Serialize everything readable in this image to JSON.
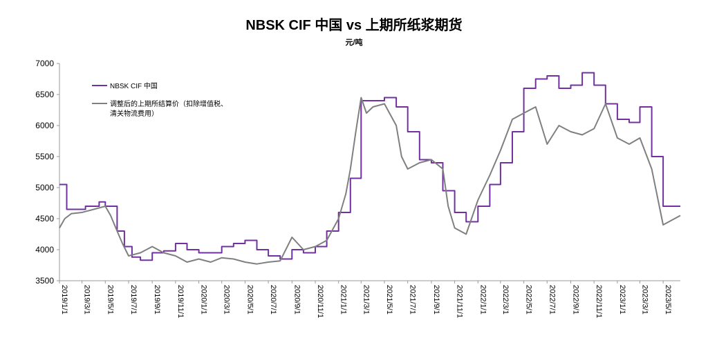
{
  "chart_data": {
    "type": "line",
    "title": "NBSK CIF 中国 vs 上期所纸浆期货",
    "unit": "元/吨",
    "xlabel": "",
    "ylabel": "",
    "ylim": [
      3500,
      7000
    ],
    "y_ticks": [
      3500,
      4000,
      4500,
      5000,
      5500,
      6000,
      6500,
      7000
    ],
    "x_range": [
      "2019-01-01",
      "2023-06-15"
    ],
    "x_tick_labels": [
      "2019/1/1",
      "2019/3/1",
      "2019/5/1",
      "2019/7/1",
      "2019/9/1",
      "2019/11/1",
      "2020/1/1",
      "2020/3/1",
      "2020/5/1",
      "2020/7/1",
      "2020/9/1",
      "2020/11/1",
      "2021/1/1",
      "2021/3/1",
      "2021/5/1",
      "2021/7/1",
      "2021/9/1",
      "2021/11/1",
      "2022/1/1",
      "2022/3/1",
      "2022/5/1",
      "2022/7/1",
      "2022/9/1",
      "2022/11/1",
      "2023/1/1",
      "2023/3/1",
      "2023/5/1"
    ],
    "grid": false,
    "legend_position": "top-left",
    "series": [
      {
        "name": "NBSK CIF 中国",
        "color": "#7030a0",
        "step": true,
        "points": [
          [
            "2019-01-01",
            5050
          ],
          [
            "2019-01-20",
            4650
          ],
          [
            "2019-03-10",
            4700
          ],
          [
            "2019-04-15",
            4770
          ],
          [
            "2019-05-01",
            4700
          ],
          [
            "2019-06-01",
            4300
          ],
          [
            "2019-06-20",
            4050
          ],
          [
            "2019-07-10",
            3880
          ],
          [
            "2019-08-01",
            3830
          ],
          [
            "2019-09-01",
            3950
          ],
          [
            "2019-10-01",
            3980
          ],
          [
            "2019-11-01",
            4100
          ],
          [
            "2019-12-01",
            4000
          ],
          [
            "2020-01-01",
            3950
          ],
          [
            "2020-02-01",
            3950
          ],
          [
            "2020-03-01",
            4050
          ],
          [
            "2020-04-01",
            4100
          ],
          [
            "2020-05-01",
            4150
          ],
          [
            "2020-06-01",
            4000
          ],
          [
            "2020-07-01",
            3900
          ],
          [
            "2020-08-01",
            3850
          ],
          [
            "2020-09-01",
            4000
          ],
          [
            "2020-10-01",
            3950
          ],
          [
            "2020-11-01",
            4050
          ],
          [
            "2020-12-01",
            4300
          ],
          [
            "2021-01-01",
            4600
          ],
          [
            "2021-02-01",
            5150
          ],
          [
            "2021-03-01",
            6400
          ],
          [
            "2021-05-01",
            6450
          ],
          [
            "2021-06-01",
            6300
          ],
          [
            "2021-07-01",
            5900
          ],
          [
            "2021-08-01",
            5450
          ],
          [
            "2021-09-01",
            5400
          ],
          [
            "2021-10-01",
            4950
          ],
          [
            "2021-11-01",
            4600
          ],
          [
            "2021-12-01",
            4450
          ],
          [
            "2022-01-01",
            4700
          ],
          [
            "2022-02-01",
            5050
          ],
          [
            "2022-03-01",
            5400
          ],
          [
            "2022-04-01",
            5900
          ],
          [
            "2022-05-01",
            6600
          ],
          [
            "2022-06-01",
            6750
          ],
          [
            "2022-07-01",
            6800
          ],
          [
            "2022-08-01",
            6600
          ],
          [
            "2022-09-01",
            6650
          ],
          [
            "2022-10-01",
            6850
          ],
          [
            "2022-11-01",
            6650
          ],
          [
            "2022-12-01",
            6350
          ],
          [
            "2023-01-01",
            6100
          ],
          [
            "2023-02-01",
            6050
          ],
          [
            "2023-03-01",
            6300
          ],
          [
            "2023-04-01",
            5500
          ],
          [
            "2023-05-01",
            4700
          ],
          [
            "2023-06-15",
            4700
          ]
        ]
      },
      {
        "name": "调整后的上期所结算价（扣除增值税、清关物流费用）",
        "legend_lines": [
          "调整后的上期所结算价（扣除增值税、",
          "清关物流费用）"
        ],
        "color": "#7f7f7f",
        "step": false,
        "points": [
          [
            "2019-01-01",
            4350
          ],
          [
            "2019-01-15",
            4500
          ],
          [
            "2019-02-01",
            4580
          ],
          [
            "2019-03-01",
            4600
          ],
          [
            "2019-04-01",
            4650
          ],
          [
            "2019-05-01",
            4700
          ],
          [
            "2019-05-15",
            4550
          ],
          [
            "2019-06-01",
            4300
          ],
          [
            "2019-06-15",
            4100
          ],
          [
            "2019-07-01",
            3900
          ],
          [
            "2019-08-01",
            3950
          ],
          [
            "2019-09-01",
            4050
          ],
          [
            "2019-10-01",
            3950
          ],
          [
            "2019-11-01",
            3900
          ],
          [
            "2019-12-01",
            3800
          ],
          [
            "2020-01-01",
            3850
          ],
          [
            "2020-02-01",
            3800
          ],
          [
            "2020-03-01",
            3870
          ],
          [
            "2020-04-01",
            3850
          ],
          [
            "2020-05-01",
            3800
          ],
          [
            "2020-06-01",
            3770
          ],
          [
            "2020-07-01",
            3800
          ],
          [
            "2020-08-01",
            3820
          ],
          [
            "2020-09-01",
            4200
          ],
          [
            "2020-10-01",
            4000
          ],
          [
            "2020-11-01",
            4050
          ],
          [
            "2020-12-01",
            4150
          ],
          [
            "2021-01-01",
            4500
          ],
          [
            "2021-01-20",
            4900
          ],
          [
            "2021-02-01",
            5300
          ],
          [
            "2021-02-15",
            5900
          ],
          [
            "2021-03-01",
            6450
          ],
          [
            "2021-03-15",
            6200
          ],
          [
            "2021-04-01",
            6300
          ],
          [
            "2021-05-01",
            6350
          ],
          [
            "2021-06-01",
            6000
          ],
          [
            "2021-06-15",
            5500
          ],
          [
            "2021-07-01",
            5300
          ],
          [
            "2021-08-01",
            5400
          ],
          [
            "2021-09-01",
            5450
          ],
          [
            "2021-10-01",
            5300
          ],
          [
            "2021-10-15",
            4700
          ],
          [
            "2021-11-01",
            4350
          ],
          [
            "2021-12-01",
            4250
          ],
          [
            "2022-01-01",
            4800
          ],
          [
            "2022-02-01",
            5200
          ],
          [
            "2022-03-01",
            5600
          ],
          [
            "2022-04-01",
            6100
          ],
          [
            "2022-05-01",
            6200
          ],
          [
            "2022-06-01",
            6300
          ],
          [
            "2022-07-01",
            5700
          ],
          [
            "2022-08-01",
            6000
          ],
          [
            "2022-09-01",
            5900
          ],
          [
            "2022-10-01",
            5850
          ],
          [
            "2022-11-01",
            5950
          ],
          [
            "2022-12-01",
            6350
          ],
          [
            "2023-01-01",
            5800
          ],
          [
            "2023-02-01",
            5700
          ],
          [
            "2023-03-01",
            5800
          ],
          [
            "2023-04-01",
            5300
          ],
          [
            "2023-05-01",
            4400
          ],
          [
            "2023-06-15",
            4550
          ]
        ]
      }
    ]
  }
}
